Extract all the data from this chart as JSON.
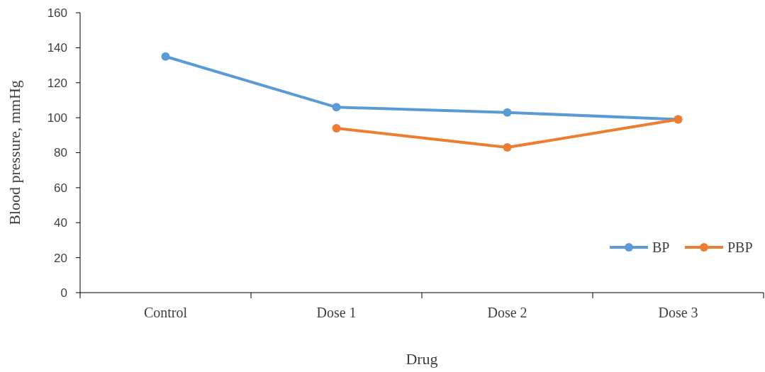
{
  "chart_data": {
    "type": "line",
    "xlabel": "Drug",
    "ylabel": "Blood pressure, mmHg",
    "categories": [
      "Control",
      "Dose 1",
      "Dose 2",
      "Dose 3"
    ],
    "series": [
      {
        "name": "BP",
        "color": "#5b9bd5",
        "values": [
          135,
          106,
          103,
          99
        ]
      },
      {
        "name": "PBP",
        "color": "#ed7d31",
        "values": [
          null,
          94,
          83,
          99
        ]
      }
    ],
    "ylim": [
      0,
      160
    ],
    "yticks": [
      0,
      20,
      40,
      60,
      80,
      100,
      120,
      140,
      160
    ],
    "grid": false,
    "legend": "bottom right",
    "marker": "circle",
    "line_style": "solid"
  }
}
